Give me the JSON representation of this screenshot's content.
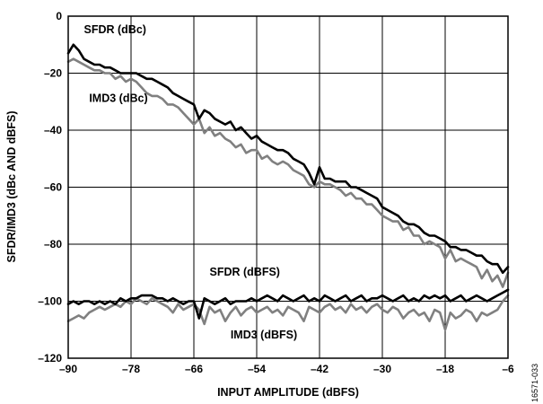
{
  "figure_id": "16571-033",
  "chart_data": {
    "type": "line",
    "title": "",
    "xlabel": "INPUT AMPLITUDE (dBFS)",
    "ylabel": "SFDR/IMD3 (dBc AND dBFS)",
    "xlim": [
      -90,
      -6
    ],
    "ylim": [
      -120,
      0
    ],
    "xticks": [
      -90,
      -78,
      -66,
      -54,
      -42,
      -30,
      -18,
      -6
    ],
    "yticks": [
      0,
      -20,
      -40,
      -60,
      -80,
      -100,
      -120
    ],
    "grid": true,
    "series": [
      {
        "name": "SFDR (dBc)",
        "color": "#000000",
        "x": [
          -90,
          -89,
          -88,
          -87,
          -86,
          -85,
          -84,
          -83,
          -82,
          -81,
          -80,
          -79,
          -78,
          -77,
          -76,
          -75,
          -74,
          -73,
          -72,
          -71,
          -70,
          -69,
          -68,
          -67,
          -66,
          -65,
          -64,
          -63,
          -62,
          -61,
          -60,
          -59,
          -58,
          -57,
          -56,
          -55,
          -54,
          -53,
          -52,
          -51,
          -50,
          -49,
          -48,
          -47,
          -46,
          -45,
          -44,
          -43,
          -42,
          -41,
          -40,
          -39,
          -38,
          -37,
          -36,
          -35,
          -34,
          -33,
          -32,
          -31,
          -30,
          -29,
          -28,
          -27,
          -26,
          -25,
          -24,
          -23,
          -22,
          -21,
          -20,
          -19,
          -18,
          -17,
          -16,
          -15,
          -14,
          -13,
          -12,
          -11,
          -10,
          -9,
          -8,
          -7,
          -6
        ],
        "values": [
          -13,
          -10,
          -12,
          -15,
          -16,
          -17,
          -17,
          -18,
          -18,
          -19,
          -20,
          -20,
          -20,
          -20,
          -21,
          -22,
          -22,
          -23,
          -24,
          -25,
          -27,
          -28,
          -29,
          -30,
          -31,
          -36,
          -33,
          -34,
          -36,
          -37,
          -38,
          -37,
          -40,
          -39,
          -41,
          -43,
          -42,
          -44,
          -45,
          -46,
          -47,
          -47,
          -48,
          -50,
          -51,
          -52,
          -55,
          -59,
          -53,
          -57,
          -57,
          -58,
          -58,
          -58,
          -60,
          -60,
          -61,
          -62,
          -63,
          -64,
          -67,
          -68,
          -69,
          -70,
          -72,
          -73,
          -73,
          -74,
          -76,
          -77,
          -77,
          -78,
          -79,
          -81,
          -81,
          -82,
          -82,
          -83,
          -84,
          -84,
          -86,
          -87,
          -87,
          -90,
          -88
        ]
      },
      {
        "name": "IMD3 (dBc)",
        "color": "#808080",
        "x": [
          -90,
          -89,
          -88,
          -87,
          -86,
          -85,
          -84,
          -83,
          -82,
          -81,
          -80,
          -79,
          -78,
          -77,
          -76,
          -75,
          -74,
          -73,
          -72,
          -71,
          -70,
          -69,
          -68,
          -67,
          -66,
          -65,
          -64,
          -63,
          -62,
          -61,
          -60,
          -59,
          -58,
          -57,
          -56,
          -55,
          -54,
          -53,
          -52,
          -51,
          -50,
          -49,
          -48,
          -47,
          -46,
          -45,
          -44,
          -43,
          -42,
          -41,
          -40,
          -39,
          -38,
          -37,
          -36,
          -35,
          -34,
          -33,
          -32,
          -31,
          -30,
          -29,
          -28,
          -27,
          -26,
          -25,
          -24,
          -23,
          -22,
          -21,
          -20,
          -19,
          -18,
          -17,
          -16,
          -15,
          -14,
          -13,
          -12,
          -11,
          -10,
          -9,
          -8,
          -7,
          -6
        ],
        "values": [
          -16,
          -15,
          -16,
          -17,
          -18,
          -19,
          -19,
          -20,
          -20,
          -22,
          -21,
          -23,
          -22,
          -23,
          -25,
          -27,
          -28,
          -28,
          -29,
          -31,
          -31,
          -32,
          -34,
          -36,
          -38,
          -36,
          -41,
          -39,
          -42,
          -41,
          -43,
          -44,
          -46,
          -45,
          -48,
          -47,
          -47,
          -50,
          -49,
          -51,
          -52,
          -51,
          -52,
          -54,
          -55,
          -56,
          -59,
          -60,
          -58,
          -59,
          -59,
          -60,
          -61,
          -63,
          -62,
          -64,
          -64,
          -66,
          -66,
          -68,
          -70,
          -71,
          -72,
          -72,
          -75,
          -74,
          -77,
          -77,
          -80,
          -79,
          -80,
          -81,
          -85,
          -82,
          -86,
          -85,
          -86,
          -87,
          -88,
          -92,
          -89,
          -93,
          -91,
          -95,
          -90
        ]
      },
      {
        "name": "SFDR (dBFS)",
        "color": "#000000",
        "x": [
          -90,
          -89,
          -88,
          -87,
          -86,
          -85,
          -84,
          -83,
          -82,
          -81,
          -80,
          -79,
          -78,
          -77,
          -76,
          -75,
          -74,
          -73,
          -72,
          -71,
          -70,
          -69,
          -68,
          -67,
          -66,
          -65,
          -64,
          -63,
          -62,
          -61,
          -60,
          -59,
          -58,
          -57,
          -56,
          -55,
          -54,
          -53,
          -52,
          -51,
          -50,
          -49,
          -48,
          -47,
          -46,
          -45,
          -44,
          -43,
          -42,
          -41,
          -40,
          -39,
          -38,
          -37,
          -36,
          -35,
          -34,
          -33,
          -32,
          -31,
          -30,
          -29,
          -28,
          -27,
          -26,
          -25,
          -24,
          -23,
          -22,
          -21,
          -20,
          -19,
          -18,
          -17,
          -16,
          -15,
          -14,
          -13,
          -12,
          -11,
          -10,
          -9,
          -8,
          -7,
          -6
        ],
        "values": [
          -101,
          -100,
          -101,
          -100,
          -100,
          -101,
          -100,
          -101,
          -100,
          -101,
          -99,
          -100,
          -99,
          -99,
          -98,
          -98,
          -98,
          -99,
          -99,
          -100,
          -99,
          -100,
          -101,
          -100,
          -100,
          -106,
          -99,
          -100,
          -101,
          -100,
          -99,
          -101,
          -100,
          -100,
          -100,
          -99,
          -100,
          -99,
          -98,
          -99,
          -100,
          -98,
          -99,
          -100,
          -99,
          -98,
          -100,
          -99,
          -100,
          -98,
          -99,
          -100,
          -99,
          -98,
          -100,
          -99,
          -98,
          -100,
          -99,
          -99,
          -98,
          -99,
          -100,
          -99,
          -98,
          -100,
          -99,
          -100,
          -98,
          -99,
          -98,
          -99,
          -98,
          -100,
          -99,
          -98,
          -100,
          -99,
          -98,
          -99,
          -100,
          -99,
          -98,
          -97,
          -96
        ]
      },
      {
        "name": "IMD3 (dBFS)",
        "color": "#808080",
        "x": [
          -90,
          -89,
          -88,
          -87,
          -86,
          -85,
          -84,
          -83,
          -82,
          -81,
          -80,
          -79,
          -78,
          -77,
          -76,
          -75,
          -74,
          -73,
          -72,
          -71,
          -70,
          -69,
          -68,
          -67,
          -66,
          -65,
          -64,
          -63,
          -62,
          -61,
          -60,
          -59,
          -58,
          -57,
          -56,
          -55,
          -54,
          -53,
          -52,
          -51,
          -50,
          -49,
          -48,
          -47,
          -46,
          -45,
          -44,
          -43,
          -42,
          -41,
          -40,
          -39,
          -38,
          -37,
          -36,
          -35,
          -34,
          -33,
          -32,
          -31,
          -30,
          -29,
          -28,
          -27,
          -26,
          -25,
          -24,
          -23,
          -22,
          -21,
          -20,
          -19,
          -18,
          -17,
          -16,
          -15,
          -14,
          -13,
          -12,
          -11,
          -10,
          -9,
          -8,
          -7,
          -6
        ],
        "values": [
          -107,
          -106,
          -105,
          -106,
          -104,
          -103,
          -102,
          -103,
          -102,
          -101,
          -102,
          -100,
          -101,
          -99,
          -100,
          -101,
          -99,
          -100,
          -101,
          -102,
          -104,
          -101,
          -103,
          -102,
          -101,
          -103,
          -108,
          -102,
          -104,
          -103,
          -107,
          -104,
          -102,
          -105,
          -103,
          -102,
          -104,
          -103,
          -102,
          -104,
          -103,
          -105,
          -102,
          -103,
          -104,
          -107,
          -102,
          -103,
          -104,
          -102,
          -101,
          -103,
          -102,
          -104,
          -101,
          -103,
          -102,
          -104,
          -102,
          -101,
          -103,
          -104,
          -102,
          -103,
          -106,
          -104,
          -103,
          -105,
          -104,
          -107,
          -103,
          -104,
          -110,
          -104,
          -106,
          -105,
          -103,
          -104,
          -107,
          -104,
          -105,
          -104,
          -103,
          -100,
          -98
        ]
      }
    ],
    "annotations": [
      {
        "text": "SFDR (dBc)",
        "x": -87,
        "y": -6
      },
      {
        "text": "IMD3 (dBc)",
        "x": -86,
        "y": -30
      },
      {
        "text": "SFDR (dBFS)",
        "x": -63,
        "y": -91
      },
      {
        "text": "IMD3 (dBFS)",
        "x": -59,
        "y": -113
      }
    ]
  }
}
